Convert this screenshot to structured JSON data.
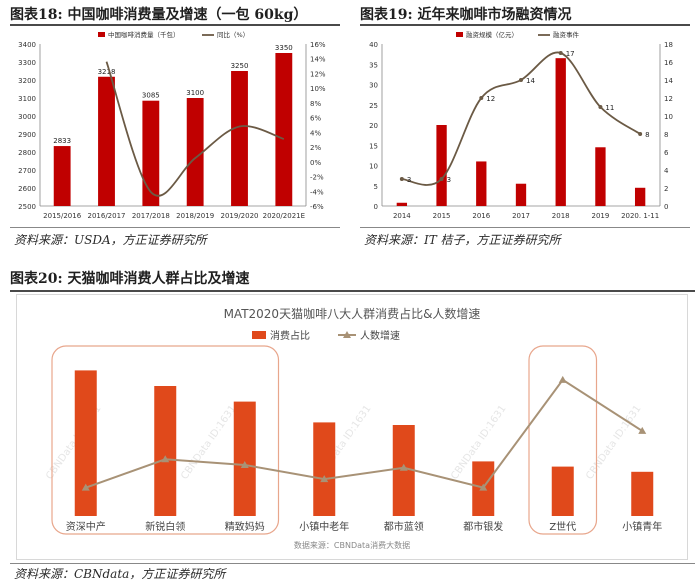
{
  "fig18": {
    "title": "图表18:   中国咖啡消费量及增速（一包 60kg）",
    "source": "资料来源：USDA，方正证券研究所",
    "chart_data": {
      "type": "bar",
      "categories": [
        "2015/2016",
        "2016/2017",
        "2017/2018",
        "2018/2019",
        "2019/2020",
        "2020/2021E"
      ],
      "series": [
        {
          "name": "中国咖啡消费量（千包）",
          "type": "bar",
          "axis": "left",
          "values": [
            2833,
            3218,
            3085,
            3100,
            3250,
            3350
          ],
          "labels": [
            "2833",
            "3218",
            "3085",
            "3100",
            "3250",
            "3350"
          ]
        },
        {
          "name": "同比（%）",
          "type": "line",
          "axis": "right",
          "values": [
            null,
            13.6,
            -4.1,
            0.5,
            4.8,
            3.1
          ]
        }
      ],
      "ylim_left": [
        2500,
        3400
      ],
      "yticks_left": [
        "2500",
        "2600",
        "2700",
        "2800",
        "2900",
        "3000",
        "3100",
        "3200",
        "3300",
        "3400"
      ],
      "ylim_right": [
        -6,
        16
      ],
      "yticks_right": [
        "-6%",
        "-4%",
        "-2%",
        "0%",
        "2%",
        "4%",
        "6%",
        "8%",
        "10%",
        "12%",
        "14%",
        "16%"
      ],
      "legend": "top",
      "colors": {
        "bar": "#c00000",
        "line": "#6b5a45"
      }
    }
  },
  "fig19": {
    "title": "图表19:   近年来咖啡市场融资情况",
    "source": "资料来源：IT 桔子，方正证券研究所",
    "chart_data": {
      "type": "bar",
      "categories": [
        "2014",
        "2015",
        "2016",
        "2017",
        "2018",
        "2019",
        "2020. 1-11"
      ],
      "series": [
        {
          "name": "融资规模（亿元）",
          "type": "bar",
          "axis": "left",
          "values": [
            0.8,
            20,
            11,
            5.5,
            36.5,
            14.5,
            4.5
          ]
        },
        {
          "name": "融资事件",
          "type": "line",
          "axis": "right",
          "values": [
            3,
            3,
            12,
            14,
            17,
            11,
            8
          ],
          "labels": [
            "3",
            "3",
            "12",
            "14",
            "17",
            "11",
            "8"
          ]
        }
      ],
      "ylim_left": [
        0,
        40
      ],
      "yticks_left": [
        "0",
        "5",
        "10",
        "15",
        "20",
        "25",
        "30",
        "35",
        "40"
      ],
      "ylim_right": [
        0,
        18
      ],
      "yticks_right": [
        "0",
        "2",
        "4",
        "6",
        "8",
        "10",
        "12",
        "14",
        "16",
        "18"
      ],
      "legend": "top",
      "colors": {
        "bar": "#c00000",
        "line": "#6b5a45"
      }
    }
  },
  "fig20": {
    "title": "图表20:   天猫咖啡消费人群占比及增速",
    "source": "资料来源：CBNdata，方正证券研究所",
    "chart_data": {
      "type": "bar",
      "title": "MAT2020天猫咖啡八大人群消费占比&人数增速",
      "categories": [
        "资深中产",
        "新锐白领",
        "精致妈妈",
        "小镇中老年",
        "都市蓝领",
        "都市银发",
        "Z世代",
        "小镇青年"
      ],
      "series": [
        {
          "name": "消费占比",
          "type": "bar",
          "values": [
            28,
            25,
            22,
            18,
            17.5,
            10.5,
            9.5,
            8.5
          ]
        },
        {
          "name": "人数增速",
          "type": "line",
          "values": [
            1,
            2,
            1.8,
            1.3,
            1.7,
            1,
            4.8,
            3
          ]
        }
      ],
      "ylim_bar": [
        0,
        30
      ],
      "ylim_line": [
        0,
        5.5
      ],
      "data_source_note": "数据来源：CBNData消费大数据",
      "watermark": "CBNData ID:1631",
      "highlight_groups": [
        [
          0,
          2
        ],
        [
          6,
          6
        ]
      ],
      "legend": "top",
      "colors": {
        "bar": "#e0491b",
        "line": "#a89276",
        "highlight": "#e8a68c"
      }
    }
  }
}
